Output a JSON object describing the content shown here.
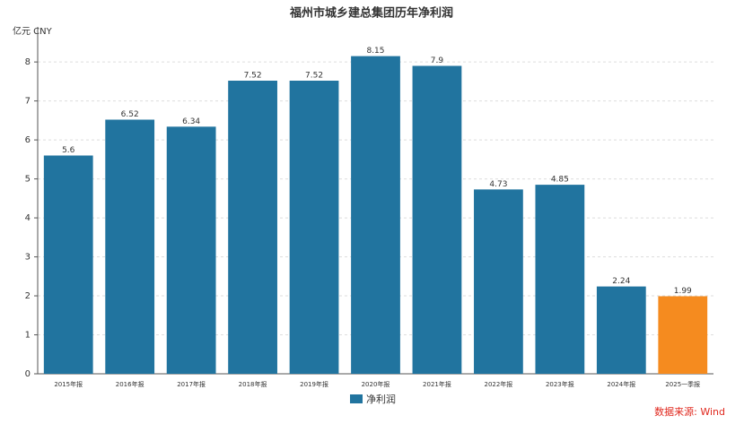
{
  "chart_data": {
    "type": "bar",
    "title": "福州市城乡建总集团历年净利润",
    "y_unit": "亿元  CNY",
    "categories": [
      "2015年报",
      "2016年报",
      "2017年报",
      "2018年报",
      "2019年报",
      "2020年报",
      "2021年报",
      "2022年报",
      "2023年报",
      "2024年报",
      "2025一季报"
    ],
    "series": [
      {
        "name": "净利润",
        "color": "#21749f",
        "values": [
          5.6,
          6.52,
          6.34,
          7.52,
          7.52,
          8.15,
          7.9,
          4.73,
          4.85,
          2.24,
          1.99
        ]
      }
    ],
    "bar_colors": [
      "#21749f",
      "#21749f",
      "#21749f",
      "#21749f",
      "#21749f",
      "#21749f",
      "#21749f",
      "#21749f",
      "#21749f",
      "#21749f",
      "#f58b1f"
    ],
    "ylim": [
      0,
      8.9
    ],
    "yticks": [
      0,
      1,
      2,
      3,
      4,
      5,
      6,
      7,
      8
    ],
    "grid": true,
    "legend": "bottom",
    "source": "数据来源: Wind"
  }
}
